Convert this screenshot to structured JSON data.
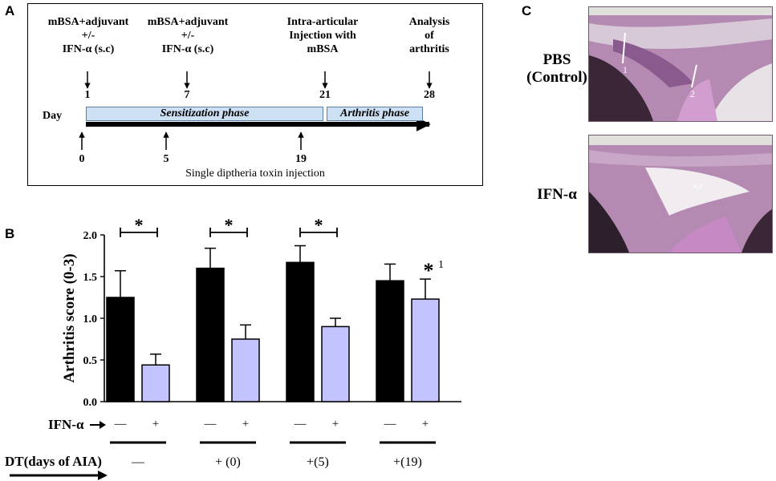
{
  "panels": {
    "a": "A",
    "b": "B",
    "c": "C"
  },
  "timeline": {
    "steps": [
      {
        "text": "mBSA+adjuvant\n+/-\nIFN-α (s.c)",
        "day": "1"
      },
      {
        "text": "mBSA+adjuvant\n+/-\nIFN-α (s.c)",
        "day": "7"
      },
      {
        "text": "Intra-articular\nInjection with\nmBSA",
        "day": "21"
      },
      {
        "text": "Analysis\nof\narthritis",
        "day": "28"
      }
    ],
    "day_label": "Day",
    "sensitization": "Sensitization phase",
    "arthritis_phase": "Arthritis phase",
    "dt_days": [
      "0",
      "5",
      "19"
    ],
    "dt_caption": "Single diptheria toxin injection"
  },
  "chart_data": {
    "type": "bar",
    "ylabel": "Arthritis score (0-3)",
    "ylim": [
      0,
      2.0
    ],
    "yticks": [
      "0.0",
      "0.5",
      "1.0",
      "1.5",
      "2.0"
    ],
    "groups": [
      "—",
      "+ (0)",
      "+(5)",
      "+(19)"
    ],
    "ifn_levels": [
      "—",
      "+"
    ],
    "ifn_label": "IFN-α",
    "dt_label": "DT(days of AIA)",
    "series": [
      {
        "values": [
          1.25,
          1.6,
          1.67,
          1.45
        ],
        "errors": [
          0.32,
          0.24,
          0.2,
          0.2
        ],
        "color": "#000000"
      },
      {
        "values": [
          0.44,
          0.75,
          0.9,
          1.23
        ],
        "errors": [
          0.13,
          0.17,
          0.1,
          0.24
        ],
        "color": "#c3c3ff"
      }
    ],
    "significance": [
      "*",
      "*",
      "*",
      "*1"
    ]
  },
  "micrographs": {
    "pbs_label": "PBS\n(Control)",
    "ifn_label": "IFN-α",
    "pbs_arrows": [
      "1",
      "2"
    ],
    "ifn_annotation": "s.c"
  },
  "colors": {
    "phase_fill": "#cde0f4",
    "bar_dark": "#000000",
    "bar_light": "#c3c3ff",
    "tissue": "#b48ab2"
  }
}
